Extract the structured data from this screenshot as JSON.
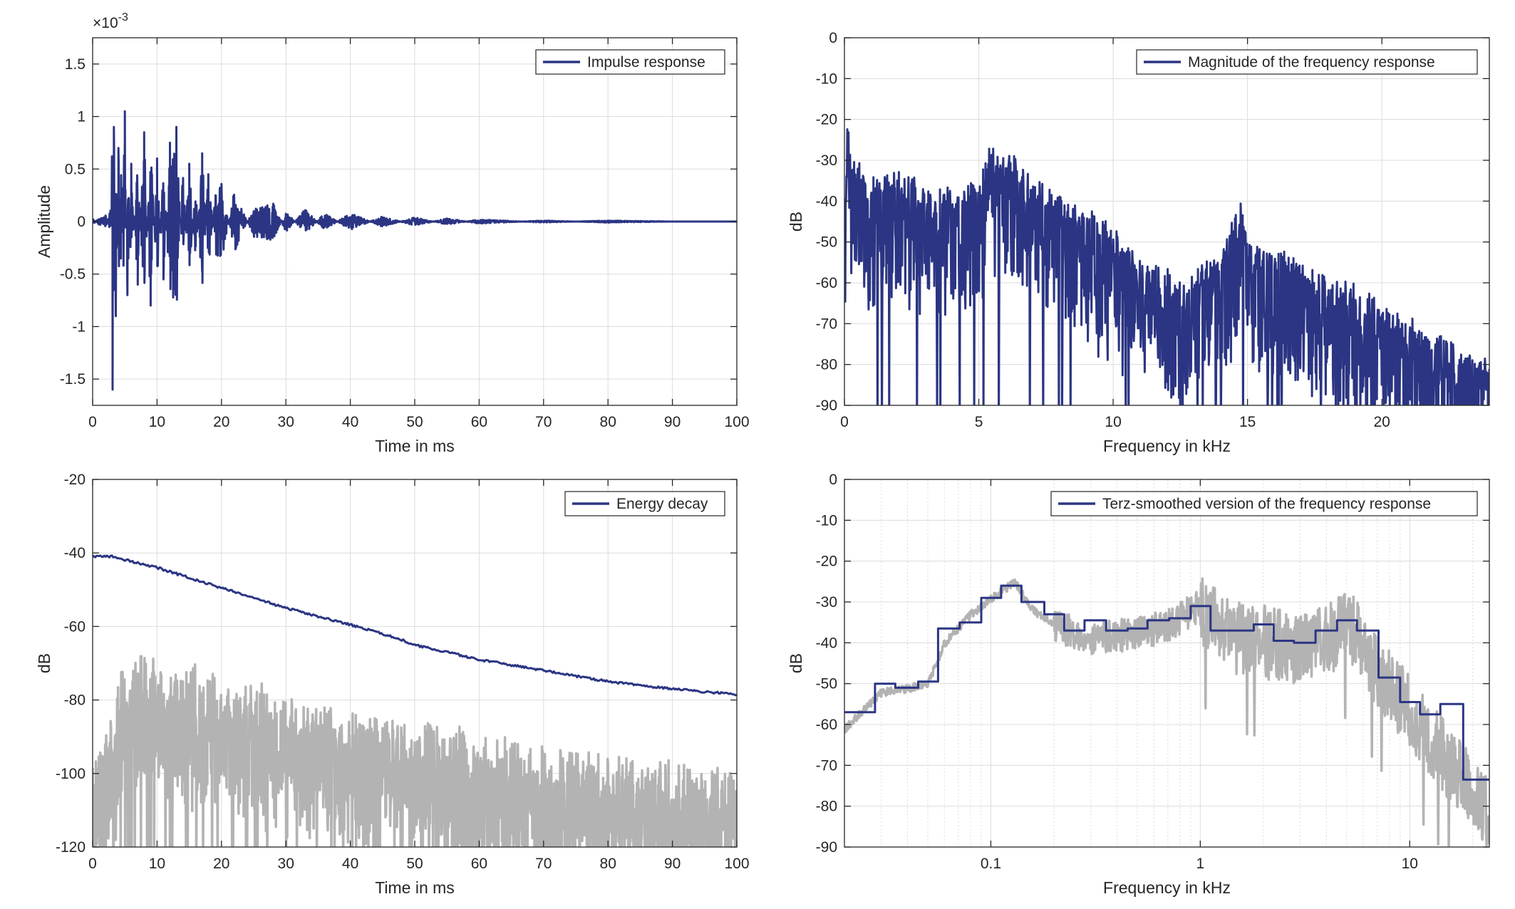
{
  "colors": {
    "series": "#2b3583",
    "raw": "#b3b3b3",
    "grid": "#dcdcdc",
    "axis": "#262626"
  },
  "chart_data": [
    {
      "type": "line",
      "legend": [
        "Impulse response"
      ],
      "legend_position": "top-right",
      "xlabel": "Time in ms",
      "ylabel": "Amplitude",
      "exponent_label": "×10",
      "exponent_power": "-3",
      "xlim": [
        0,
        100
      ],
      "ylim": [
        -1.75,
        1.75
      ],
      "xticks": [
        0,
        10,
        20,
        30,
        40,
        50,
        60,
        70,
        80,
        90,
        100
      ],
      "xtick_labels": [
        "0",
        "10",
        "20",
        "30",
        "40",
        "50",
        "60",
        "70",
        "80",
        "90",
        "100"
      ],
      "yticks": [
        -1.5,
        -1,
        -0.5,
        0,
        0.5,
        1,
        1.5
      ],
      "ytick_labels": [
        "-1.5",
        "-1",
        "-0.5",
        "0",
        "0.5",
        "1",
        "1.5"
      ],
      "grid": true,
      "series": [
        {
          "name": "Impulse response",
          "color": "#2b3583",
          "x": [
            0,
            1,
            2,
            2.8,
            3.1,
            3.3,
            3.6,
            4,
            4.4,
            5,
            5.4,
            6,
            7,
            8,
            9,
            10,
            11,
            12,
            13,
            14,
            15,
            16,
            17,
            18,
            19,
            20,
            22,
            25,
            28,
            30,
            33,
            36,
            40,
            45,
            50,
            55,
            60,
            70,
            80,
            90,
            100
          ],
          "y": [
            0.05,
            -0.05,
            -0.1,
            0.2,
            -1.6,
            0.9,
            -0.9,
            0.7,
            -0.5,
            1.05,
            -0.7,
            0.55,
            -0.6,
            0.85,
            -0.8,
            0.6,
            -0.55,
            0.75,
            0.9,
            -0.5,
            0.55,
            -0.4,
            0.65,
            -0.5,
            0.3,
            0.4,
            -0.3,
            0.15,
            0.18,
            -0.1,
            0.12,
            -0.08,
            0.08,
            -0.05,
            0.04,
            -0.03,
            0.02,
            -0.01,
            0.01,
            0,
            0
          ]
        }
      ]
    },
    {
      "type": "line",
      "legend": [
        "Magnitude of the frequency response"
      ],
      "legend_position": "top-right",
      "xlabel": "Frequency in kHz",
      "ylabel": "dB",
      "xlim": [
        0,
        24
      ],
      "ylim": [
        -90,
        0
      ],
      "xticks": [
        0,
        5,
        10,
        15,
        20
      ],
      "xtick_labels": [
        "0",
        "5",
        "10",
        "15",
        "20"
      ],
      "yticks": [
        0,
        -10,
        -20,
        -30,
        -40,
        -50,
        -60,
        -70,
        -80,
        -90
      ],
      "ytick_labels": [
        "0",
        "-10",
        "-20",
        "-30",
        "-40",
        "-50",
        "-60",
        "-70",
        "-80",
        "-90"
      ],
      "grid": true,
      "series": [
        {
          "name": "Magnitude of the frequency response",
          "color": "#2b3583",
          "x": [
            0,
            0.1,
            0.5,
            1,
            2,
            3,
            4,
            5,
            5.5,
            5.8,
            6.2,
            7,
            8,
            9,
            10,
            11,
            12,
            13,
            14,
            14.7,
            15,
            16,
            17,
            18,
            19,
            20,
            21,
            22,
            23,
            24
          ],
          "y": [
            -60,
            -27,
            -35,
            -40,
            -37,
            -42,
            -42,
            -40,
            -30,
            -36,
            -33,
            -40,
            -44,
            -47,
            -52,
            -60,
            -62,
            -63,
            -58,
            -44,
            -54,
            -55,
            -60,
            -64,
            -66,
            -70,
            -74,
            -78,
            -82,
            -84
          ]
        }
      ]
    },
    {
      "type": "line",
      "legend": [
        "Energy decay"
      ],
      "legend_position": "top-right",
      "xlabel": "Time in ms",
      "ylabel": "dB",
      "xlim": [
        0,
        100
      ],
      "ylim": [
        -120,
        -20
      ],
      "xticks": [
        0,
        10,
        20,
        30,
        40,
        50,
        60,
        70,
        80,
        90,
        100
      ],
      "xtick_labels": [
        "0",
        "10",
        "20",
        "30",
        "40",
        "50",
        "60",
        "70",
        "80",
        "90",
        "100"
      ],
      "yticks": [
        -20,
        -40,
        -60,
        -80,
        -100,
        -120
      ],
      "ytick_labels": [
        "-20",
        "-40",
        "-60",
        "-80",
        "-100",
        "-120"
      ],
      "grid": true,
      "series": [
        {
          "name": "Energy decay",
          "color": "#2b3583",
          "x": [
            0,
            3,
            10,
            20,
            30,
            40,
            47,
            50,
            60,
            70,
            80,
            90,
            100
          ],
          "y": [
            -41,
            -41,
            -44,
            -49.5,
            -55,
            -59.5,
            -63,
            -65,
            -69,
            -72,
            -75,
            -77,
            -78.5
          ]
        },
        {
          "color": "#b3b3b3",
          "x": [
            0,
            3,
            5,
            10,
            20,
            30,
            40,
            50,
            60,
            70,
            80,
            90,
            100
          ],
          "y": [
            -110,
            -95,
            -80,
            -82,
            -85,
            -90,
            -95,
            -98,
            -102,
            -105,
            -108,
            -110,
            -112
          ]
        }
      ]
    },
    {
      "type": "line",
      "legend": [
        "Terz-smoothed version of the frequency response"
      ],
      "legend_position": "top-right",
      "xlabel": "Frequency in kHz",
      "ylabel": "dB",
      "xscale": "log",
      "xlim": [
        0.02,
        24
      ],
      "ylim": [
        -90,
        0
      ],
      "xticks": [
        0.1,
        1,
        10
      ],
      "xtick_labels": [
        "0.1",
        "1",
        "10"
      ],
      "yticks": [
        0,
        -10,
        -20,
        -30,
        -40,
        -50,
        -60,
        -70,
        -80,
        -90
      ],
      "ytick_labels": [
        "0",
        "-10",
        "-20",
        "-30",
        "-40",
        "-50",
        "-60",
        "-70",
        "-80",
        "-90"
      ],
      "grid": true,
      "series": [
        {
          "name": "Terz-smoothed version of the frequency response",
          "color": "#2b3583",
          "step": true,
          "x": [
            0.02,
            0.028,
            0.035,
            0.045,
            0.056,
            0.071,
            0.09,
            0.112,
            0.14,
            0.18,
            0.224,
            0.28,
            0.355,
            0.45,
            0.56,
            0.71,
            0.9,
            1.12,
            1.4,
            1.8,
            2.24,
            2.8,
            3.55,
            4.5,
            5.6,
            7.1,
            9,
            11.2,
            14,
            18,
            24
          ],
          "y": [
            -57,
            -50,
            -51,
            -49.5,
            -36.5,
            -35,
            -29,
            -26,
            -30,
            -33,
            -37,
            -34.5,
            -37,
            -36.5,
            -34.5,
            -34,
            -31,
            -37,
            -37,
            -35.5,
            -39.5,
            -40,
            -37,
            -34.5,
            -37,
            -48.5,
            -54.5,
            -57.5,
            -55,
            -73.5,
            -73.5
          ]
        },
        {
          "color": "#b3b3b3",
          "x": [
            0.02,
            0.03,
            0.04,
            0.05,
            0.06,
            0.08,
            0.1,
            0.13,
            0.16,
            0.2,
            0.3,
            0.5,
            0.7,
            1,
            1.5,
            2,
            3,
            4,
            5,
            7,
            10,
            14,
            20,
            24
          ],
          "y": [
            -61,
            -52,
            -51,
            -50,
            -40,
            -33,
            -29,
            -25,
            -32,
            -35,
            -38,
            -37,
            -35,
            -30,
            -37,
            -38,
            -40,
            -38,
            -33,
            -45,
            -55,
            -65,
            -75,
            -80
          ]
        }
      ]
    }
  ]
}
